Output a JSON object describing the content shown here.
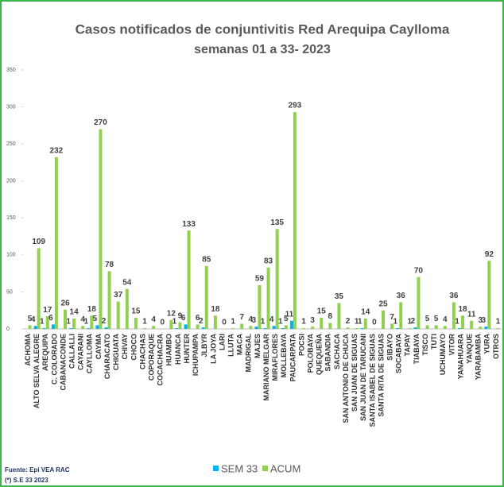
{
  "chart_data": {
    "type": "bar",
    "title": "Casos notificados de conjuntivitis Red Arequipa Caylloma",
    "subtitle": "semanas 01 a 33- 2023",
    "source": "Fuente: Epi VEA RAC",
    "note": "(*) S.E 33 2023",
    "categories": [
      "ACHOMA",
      "ALTO SELVA ALEGRE",
      "AREQUIPA",
      "C. COLORADO",
      "CABANACONDE",
      "CALLALLI",
      "CAYARANI",
      "CAYLLOMA",
      "CAYMA",
      "CHARACATO",
      "CHIGUATA",
      "CHIVAY",
      "CHOCO",
      "CHACHAS",
      "COPORAQUE",
      "COCACHACRA",
      "HUAMBO",
      "HUANCA",
      "HUNTER",
      "ICHUPAMPA",
      "JLBYR",
      "LA JOYA",
      "LARI",
      "LLUTA",
      "MACA",
      "MADRIGAL",
      "MAJES",
      "MARIANO MELGAR",
      "MIRAFLORES",
      "MOLLEBAYA",
      "PAUCARPATA",
      "POCSI",
      "POLOBAYA",
      "QUEQUEÑA",
      "SABANDIA",
      "SACHACA",
      "SAN ANTONIO DE CHUCA",
      "SAN JUAN DE SIGUAS",
      "SAN JUAN DE TARUCANI",
      "SANTA ISABEL DE SIGUAS",
      "SANTA RITA DE SIGUAS",
      "SIBAYO",
      "SOCABAYA",
      "TAPAY",
      "TIABAYA",
      "TISCO",
      "TUTI",
      "UCHUMAYO",
      "VITOR",
      "YANAHUARA",
      "YANQUE",
      "YARABAMBA",
      "YURA",
      "OTROS"
    ],
    "series": [
      {
        "name": "SEM 33",
        "color": "#00b0f0",
        "values": [
          null,
          4,
          1,
          6,
          null,
          1,
          null,
          1,
          5,
          2,
          null,
          null,
          null,
          null,
          null,
          null,
          null,
          1,
          6,
          null,
          2,
          null,
          null,
          null,
          null,
          null,
          3,
          1,
          4,
          1,
          11,
          null,
          null,
          null,
          null,
          null,
          null,
          null,
          1,
          null,
          null,
          null,
          1,
          null,
          2,
          null,
          null,
          null,
          null,
          1,
          null,
          null,
          3,
          null
        ]
      },
      {
        "name": "ACUM",
        "color": "#92d050",
        "values": [
          5,
          109,
          17,
          232,
          26,
          14,
          4,
          18,
          270,
          78,
          37,
          54,
          15,
          1,
          4,
          0,
          12,
          9,
          133,
          6,
          85,
          18,
          0,
          1,
          7,
          4,
          59,
          83,
          135,
          5,
          293,
          1,
          3,
          15,
          8,
          35,
          2,
          1,
          14,
          0,
          25,
          7,
          36,
          1,
          70,
          5,
          5,
          4,
          36,
          18,
          11,
          3,
          92,
          1
        ]
      }
    ],
    "ylim": [
      0,
      350
    ],
    "yticks": [
      0,
      50,
      100,
      150,
      200,
      250,
      300,
      350
    ],
    "grid": false
  }
}
